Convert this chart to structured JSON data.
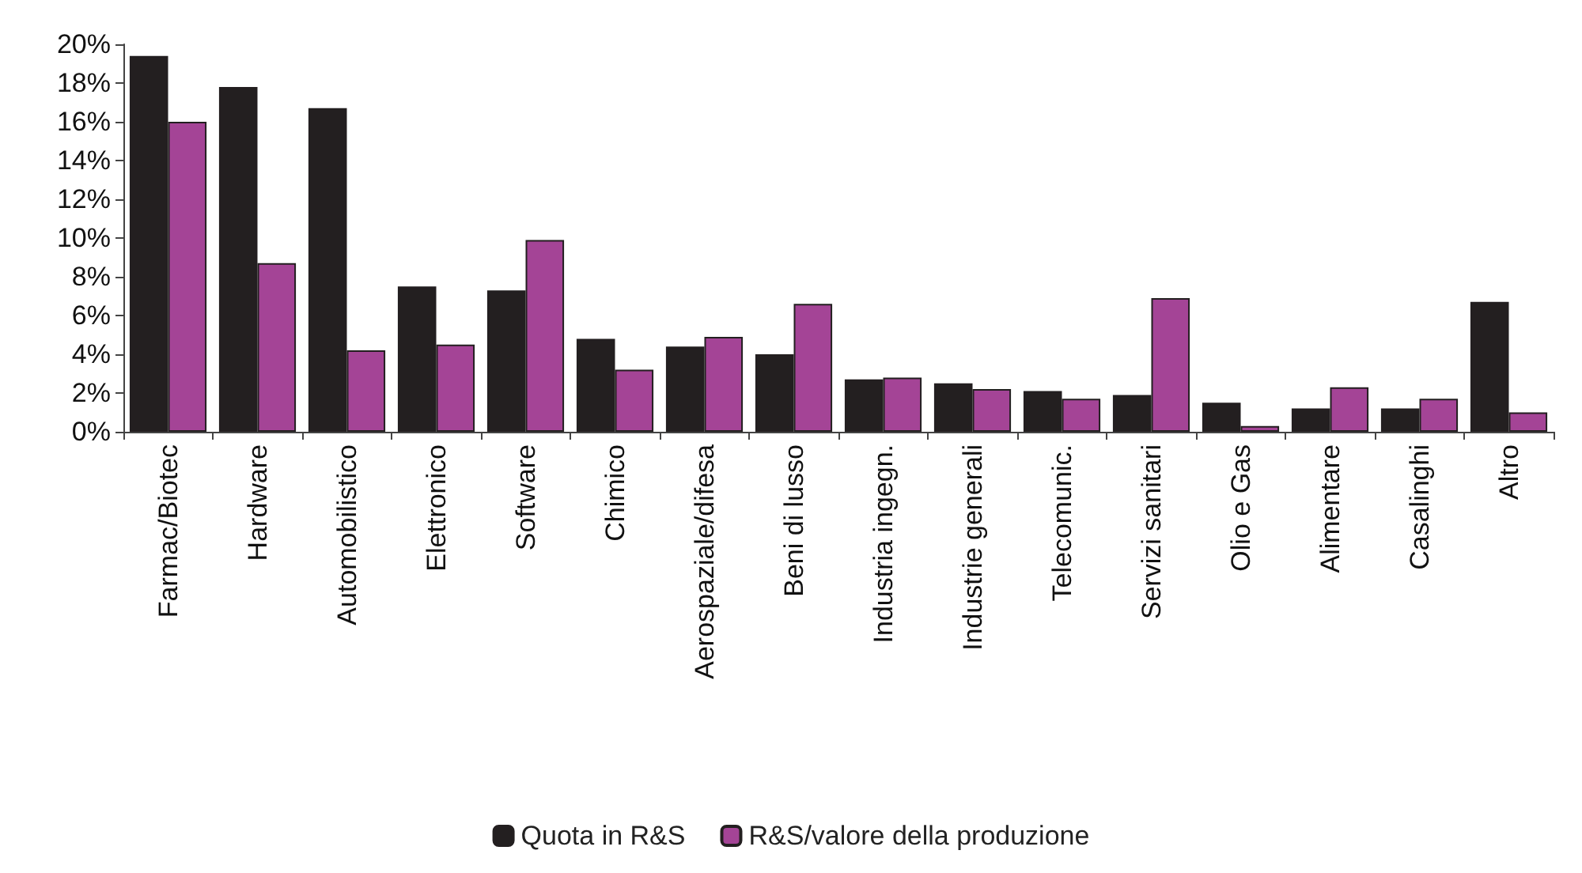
{
  "chart_data": {
    "type": "bar",
    "categories": [
      "Farmac/Biotec",
      "Hardware",
      "Automobilistico",
      "Elettronico",
      "Software",
      "Chimico",
      "Aerospaziale/difesa",
      "Beni di lusso",
      "Industria ingegn.",
      "Industrie generali",
      "Telecomunic.",
      "Servizi sanitari",
      "Olio e Gas",
      "Alimentare",
      "Casalinghi",
      "Altro"
    ],
    "series": [
      {
        "name": "Quota in R&S",
        "color": "#231f20",
        "values": [
          19.4,
          17.8,
          16.7,
          7.5,
          7.3,
          4.8,
          4.4,
          4.0,
          2.7,
          2.5,
          2.1,
          1.9,
          1.5,
          1.2,
          1.2,
          6.7
        ]
      },
      {
        "name": "R&S/valore della produzione",
        "color": "#a44496",
        "values": [
          16.0,
          8.7,
          4.2,
          4.5,
          9.9,
          3.2,
          4.9,
          6.6,
          2.8,
          2.2,
          1.7,
          6.9,
          0.3,
          2.3,
          1.7,
          1.0
        ]
      }
    ],
    "ylim": [
      0,
      20
    ],
    "yticks": [
      {
        "value": 0,
        "label": "0%"
      },
      {
        "value": 2,
        "label": "2%"
      },
      {
        "value": 4,
        "label": "4%"
      },
      {
        "value": 6,
        "label": "6%"
      },
      {
        "value": 8,
        "label": "8%"
      },
      {
        "value": 10,
        "label": "10%"
      },
      {
        "value": 12,
        "label": "12%"
      },
      {
        "value": 14,
        "label": "14%"
      },
      {
        "value": 16,
        "label": "16%"
      },
      {
        "value": 18,
        "label": "18%"
      },
      {
        "value": 20,
        "label": "20%"
      }
    ],
    "grid": false,
    "legend": "bottom"
  }
}
